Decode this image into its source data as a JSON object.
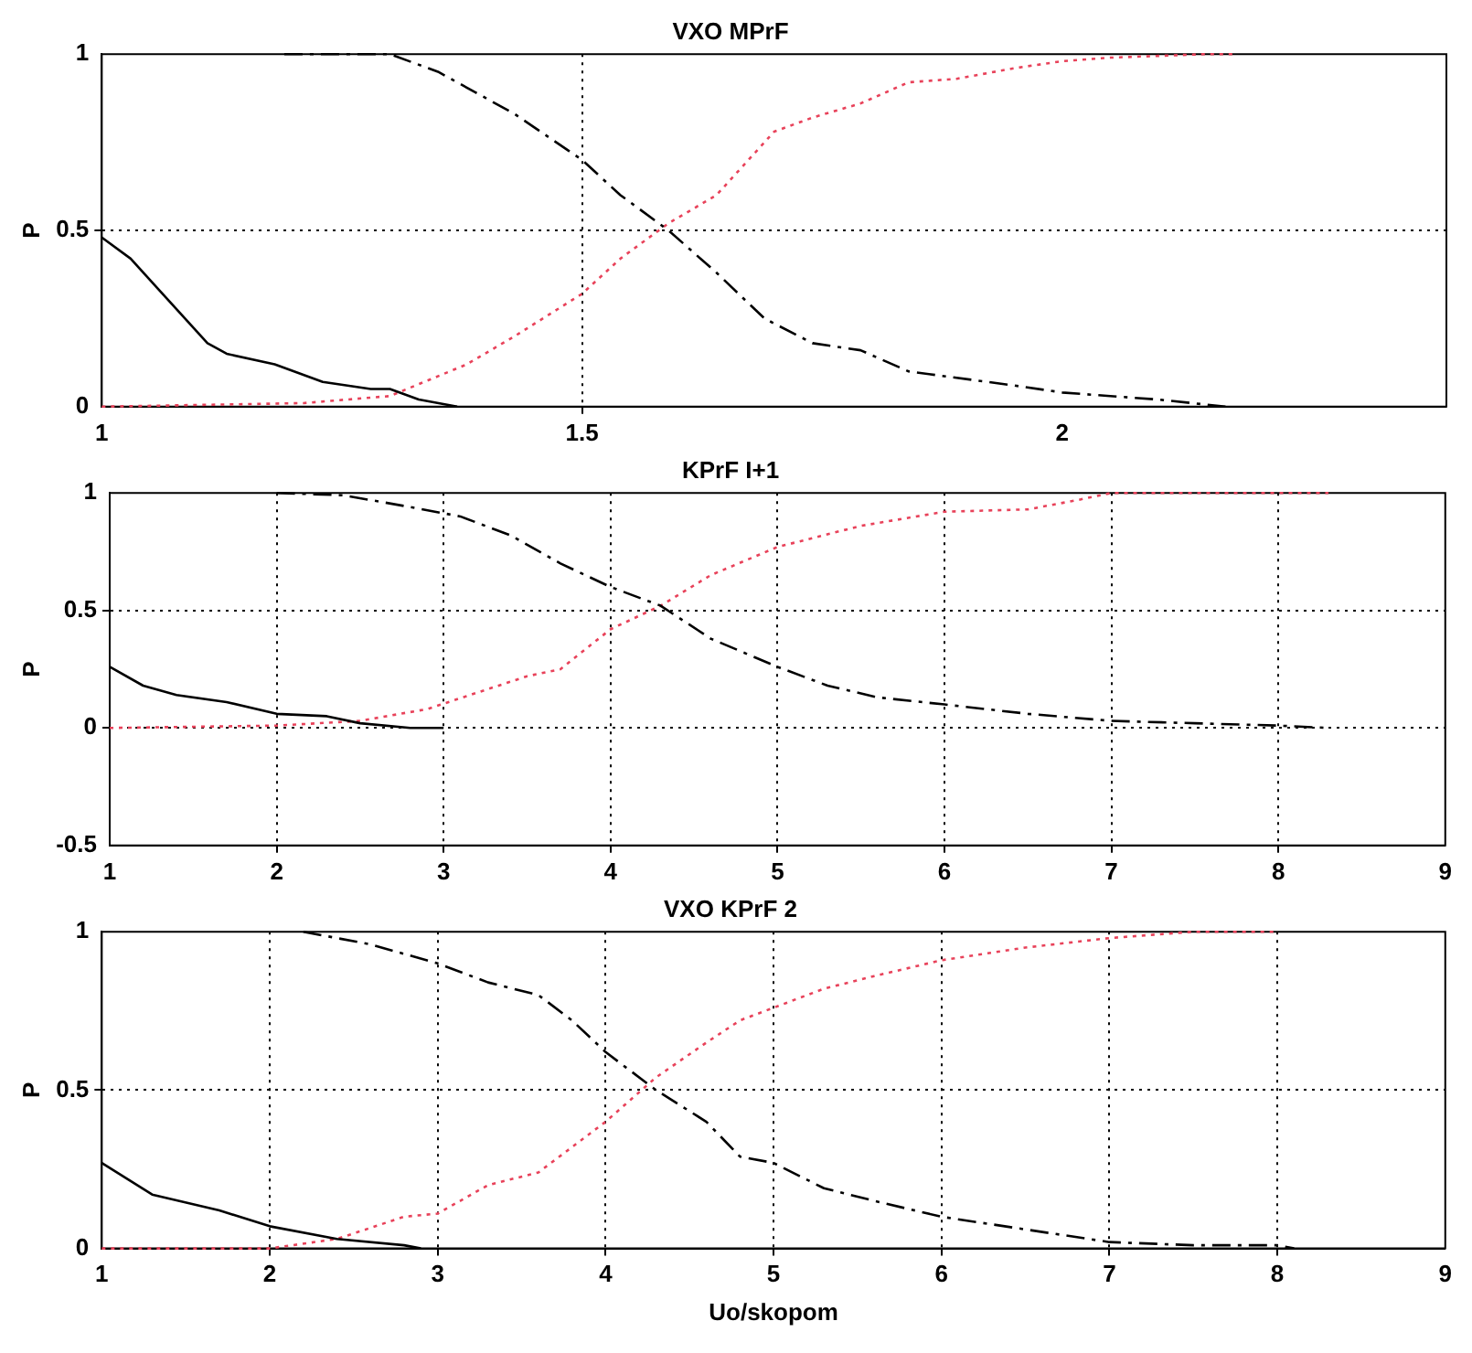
{
  "chart_data": [
    {
      "type": "line",
      "title": "VXO MPrF",
      "ylabel": "P",
      "xlim": [
        1,
        2.4
      ],
      "xticks": [
        1,
        1.5,
        2
      ],
      "ylim": [
        0,
        1
      ],
      "yticks": [
        0,
        0.5,
        1
      ],
      "grid": true,
      "legend": false,
      "marker": "none",
      "series": [
        {
          "color": "#000000",
          "line_style": "solid",
          "x": [
            1,
            1.03,
            1.06,
            1.11,
            1.13,
            1.18,
            1.23,
            1.28,
            1.3,
            1.33,
            1.37
          ],
          "values": [
            0.48,
            0.42,
            0.33,
            0.18,
            0.15,
            0.12,
            0.07,
            0.05,
            0.05,
            0.02,
            0
          ]
        },
        {
          "color": "#000000",
          "line_style": "dashed",
          "x": [
            1.19,
            1.3,
            1.35,
            1.43,
            1.5,
            1.54,
            1.59,
            1.64,
            1.69,
            1.74,
            1.79,
            1.84,
            1.95,
            2.0,
            2.05,
            2.1,
            2.17
          ],
          "values": [
            1,
            1,
            0.95,
            0.83,
            0.7,
            0.6,
            0.5,
            0.38,
            0.25,
            0.18,
            0.16,
            0.1,
            0.06,
            0.04,
            0.03,
            0.02,
            0
          ]
        },
        {
          "color": "#e8425a",
          "line_style": "dotted",
          "x": [
            1,
            1.21,
            1.3,
            1.38,
            1.43,
            1.5,
            1.54,
            1.59,
            1.64,
            1.7,
            1.74,
            1.79,
            1.84,
            1.89,
            1.95,
            2.0,
            2.05,
            2.15,
            2.18
          ],
          "values": [
            0,
            0.01,
            0.03,
            0.12,
            0.2,
            0.32,
            0.42,
            0.52,
            0.6,
            0.78,
            0.82,
            0.86,
            0.92,
            0.93,
            0.96,
            0.98,
            0.99,
            1,
            1
          ]
        }
      ]
    },
    {
      "type": "line",
      "title": "KPrF I+1",
      "ylabel": "P",
      "xlim": [
        1,
        9
      ],
      "xticks": [
        1,
        2,
        3,
        4,
        5,
        6,
        7,
        8,
        9
      ],
      "ylim": [
        -0.5,
        1
      ],
      "yticks": [
        -0.5,
        0,
        0.5,
        1
      ],
      "grid": true,
      "legend": false,
      "marker": "none",
      "series": [
        {
          "color": "#000000",
          "line_style": "solid",
          "x": [
            1,
            1.2,
            1.4,
            1.7,
            2,
            2.3,
            2.5,
            2.8,
            3
          ],
          "values": [
            0.26,
            0.18,
            0.14,
            0.11,
            0.06,
            0.05,
            0.02,
            0,
            0
          ]
        },
        {
          "color": "#000000",
          "line_style": "dashed",
          "x": [
            2,
            2.4,
            2.8,
            3.1,
            3.4,
            3.7,
            4,
            4.3,
            4.6,
            5,
            5.3,
            5.6,
            6,
            6.5,
            7,
            7.5,
            8,
            8.3
          ],
          "values": [
            1,
            0.99,
            0.94,
            0.9,
            0.82,
            0.7,
            0.6,
            0.52,
            0.38,
            0.26,
            0.18,
            0.13,
            0.1,
            0.06,
            0.03,
            0.02,
            0.01,
            0
          ]
        },
        {
          "color": "#e8425a",
          "line_style": "dotted",
          "x": [
            1,
            2,
            2.5,
            2.9,
            3.2,
            3.5,
            3.7,
            4,
            4.3,
            4.6,
            5,
            5.5,
            6,
            6.5,
            6.8,
            7,
            8,
            8.3
          ],
          "values": [
            0,
            0.01,
            0.03,
            0.08,
            0.15,
            0.22,
            0.25,
            0.42,
            0.52,
            0.65,
            0.77,
            0.86,
            0.92,
            0.93,
            0.97,
            1,
            1,
            1
          ]
        }
      ]
    },
    {
      "type": "line",
      "title": "VXO KPrF 2",
      "xlabel": "Uo/skopom",
      "ylabel": "P",
      "xlim": [
        1,
        9
      ],
      "xticks": [
        1,
        2,
        3,
        4,
        5,
        6,
        7,
        8,
        9
      ],
      "ylim": [
        0,
        1
      ],
      "yticks": [
        0,
        0.5,
        1
      ],
      "grid": true,
      "legend": false,
      "marker": "none",
      "series": [
        {
          "color": "#000000",
          "line_style": "solid",
          "x": [
            1,
            1.3,
            1.7,
            2,
            2.4,
            2.8,
            2.9
          ],
          "values": [
            0.27,
            0.17,
            0.12,
            0.07,
            0.03,
            0.01,
            0
          ]
        },
        {
          "color": "#000000",
          "line_style": "dashed",
          "x": [
            2.2,
            2.6,
            3,
            3.3,
            3.6,
            3.8,
            4,
            4.3,
            4.6,
            4.8,
            5,
            5.3,
            5.6,
            6,
            6.5,
            7,
            7.5,
            8,
            8.1
          ],
          "values": [
            1,
            0.96,
            0.9,
            0.84,
            0.8,
            0.72,
            0.62,
            0.5,
            0.4,
            0.29,
            0.27,
            0.19,
            0.15,
            0.1,
            0.06,
            0.02,
            0.01,
            0.01,
            0
          ]
        },
        {
          "color": "#e8425a",
          "line_style": "dotted",
          "x": [
            1,
            2,
            2.4,
            2.8,
            3,
            3.3,
            3.6,
            4,
            4.3,
            4.6,
            4.8,
            5,
            5.3,
            5.6,
            6,
            6.5,
            7,
            7.5,
            8
          ],
          "values": [
            0,
            0,
            0.03,
            0.1,
            0.11,
            0.2,
            0.24,
            0.4,
            0.54,
            0.65,
            0.72,
            0.76,
            0.82,
            0.86,
            0.91,
            0.95,
            0.98,
            1,
            1
          ]
        }
      ]
    }
  ]
}
